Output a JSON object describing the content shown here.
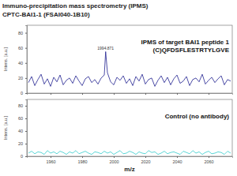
{
  "chart_data": [
    {
      "type": "line",
      "title": "Immuno-precipitation mass spectrometry (IPMS)",
      "subtitle": "CPTC-BAI1-1 (FSAI040-1B10)",
      "y_label": "Intens. [a.u.]",
      "x": [
        1946,
        1948,
        1950,
        1952,
        1954,
        1956,
        1958,
        1960,
        1962,
        1964,
        1966,
        1968,
        1970,
        1972,
        1974,
        1976,
        1978,
        1980,
        1982,
        1984,
        1986,
        1988,
        1990,
        1992,
        1994,
        1994.871,
        1996,
        1998,
        2000,
        2002,
        2004,
        2006,
        2008,
        2010,
        2012,
        2014,
        2016,
        2018,
        2020,
        2022,
        2024,
        2026,
        2028,
        2030,
        2032,
        2034,
        2036,
        2038,
        2040,
        2042,
        2044,
        2046,
        2048,
        2050,
        2052,
        2054,
        2056,
        2058,
        2060,
        2062,
        2064,
        2066,
        2068,
        2070,
        2072,
        2074
      ],
      "series": [
        {
          "color": "#1f1f8f",
          "values": [
            14,
            22,
            10,
            18,
            25,
            12,
            19,
            9,
            21,
            15,
            24,
            11,
            17,
            20,
            13,
            23,
            16,
            10,
            19,
            22,
            14,
            18,
            12,
            20,
            24,
            55,
            27,
            15,
            11,
            21,
            17,
            23,
            13,
            19,
            10,
            22,
            16,
            25,
            12,
            18,
            20,
            9,
            17,
            23,
            14,
            21,
            11,
            19,
            24,
            13,
            16,
            22,
            10,
            18,
            20,
            15,
            25,
            12,
            17,
            21,
            14,
            19,
            23,
            11,
            18,
            16
          ]
        }
      ],
      "annotations": [
        {
          "text": "IPMS of target BAI1 peptide 1"
        },
        {
          "text": "(C)QFDSFLESTRTYLGVE"
        },
        {
          "text": "1994.871",
          "x": 1994.871,
          "y": 55
        }
      ],
      "xlim": [
        1945,
        2075
      ],
      "xticks": [
        1960,
        1980,
        2000,
        2020,
        2040,
        2060
      ],
      "ylim": [
        0,
        90
      ],
      "yticks": [
        0,
        20,
        40,
        60,
        80
      ],
      "grid": false,
      "tick_labels": "y"
    },
    {
      "type": "line",
      "x_label": "m/z",
      "y_label": "Intens. [a.u.]",
      "x": [
        1946,
        1948,
        1950,
        1952,
        1954,
        1956,
        1958,
        1960,
        1962,
        1964,
        1966,
        1968,
        1970,
        1972,
        1974,
        1976,
        1978,
        1980,
        1982,
        1984,
        1986,
        1988,
        1990,
        1992,
        1994,
        1996,
        1998,
        2000,
        2002,
        2004,
        2006,
        2008,
        2010,
        2012,
        2014,
        2016,
        2018,
        2020,
        2022,
        2024,
        2026,
        2028,
        2030,
        2032,
        2034,
        2036,
        2038,
        2040,
        2042,
        2044,
        2046,
        2048,
        2050,
        2052,
        2054,
        2056,
        2058,
        2060,
        2062,
        2064,
        2066,
        2068,
        2070,
        2072,
        2074
      ],
      "series": [
        {
          "color": "#33cccc",
          "values": [
            5,
            8,
            4,
            7,
            6,
            3,
            9,
            5,
            7,
            4,
            8,
            6,
            3,
            7,
            5,
            9,
            4,
            6,
            8,
            5,
            3,
            7,
            6,
            4,
            8,
            5,
            7,
            3,
            6,
            9,
            4,
            5,
            8,
            6,
            3,
            7,
            5,
            4,
            9,
            6,
            7,
            3,
            5,
            8,
            4,
            6,
            7,
            5,
            3,
            8,
            6,
            4,
            9,
            5,
            7,
            3,
            6,
            8,
            4,
            5,
            7,
            6,
            3,
            8,
            5
          ]
        }
      ],
      "annotations": [
        {
          "text": "Control (no antibody)"
        }
      ],
      "xlim": [
        1945,
        2075
      ],
      "xticks": [
        1960,
        1980,
        2000,
        2020,
        2040,
        2060
      ],
      "ylim": [
        0,
        90
      ],
      "yticks": [
        0,
        20,
        40,
        60,
        80
      ],
      "grid": false
    }
  ]
}
